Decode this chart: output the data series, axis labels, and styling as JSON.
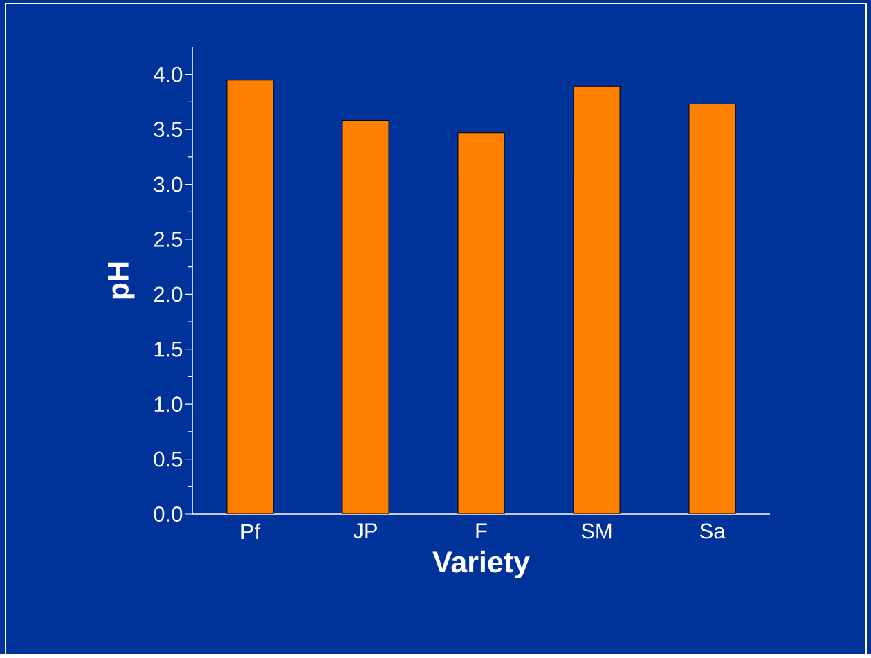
{
  "chart_data": {
    "type": "bar",
    "xlabel": "Variety",
    "ylabel": "pH",
    "categories": [
      "Pf",
      "JP",
      "F",
      "SM",
      "Sa"
    ],
    "values": [
      3.95,
      3.58,
      3.47,
      3.89,
      3.73
    ],
    "color": "#ff8000",
    "ylim": [
      0,
      4.25
    ],
    "yticks": [
      {
        "value": 0,
        "label": "0.0"
      },
      {
        "value": 0.5,
        "label": "0.5"
      },
      {
        "value": 1,
        "label": "1.0"
      },
      {
        "value": 1.5,
        "label": "1.5"
      },
      {
        "value": 2,
        "label": "2.0"
      },
      {
        "value": 2.5,
        "label": "2.5"
      },
      {
        "value": 3,
        "label": "3.0"
      },
      {
        "value": 3.5,
        "label": "3.5"
      },
      {
        "value": 4,
        "label": "4.0"
      }
    ]
  }
}
